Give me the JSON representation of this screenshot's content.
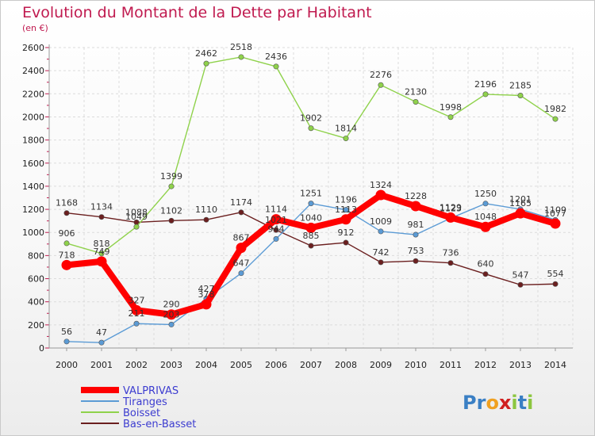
{
  "chart_data": {
    "type": "line",
    "title": "Evolution du Montant de la Dette par Habitant",
    "subtitle": "(en €)",
    "xlabel": "",
    "ylabel": "",
    "ylim": [
      0,
      2600
    ],
    "y_ticks": [
      0,
      200,
      400,
      600,
      800,
      1000,
      1200,
      1400,
      1600,
      1800,
      2000,
      2200,
      2400,
      2600
    ],
    "x": [
      "2000",
      "2001",
      "2002",
      "2003",
      "2004",
      "2005",
      "2006",
      "2007",
      "2008",
      "2009",
      "2010",
      "2011",
      "2012",
      "2013",
      "2014"
    ],
    "grid": true,
    "legend_position": "bottom-left",
    "series": [
      {
        "name": "Bas-en-Basset",
        "color": "#6b1f1f",
        "values": [
          1168,
          1134,
          1088,
          1102,
          1110,
          1174,
          1021,
          885,
          912,
          742,
          753,
          736,
          640,
          547,
          554
        ]
      },
      {
        "name": "Boisset",
        "color": "#8fd24b",
        "values": [
          906,
          818,
          1049,
          1399,
          2462,
          2518,
          2436,
          1902,
          1814,
          2276,
          2130,
          1998,
          2196,
          2185,
          1982
        ]
      },
      {
        "name": "Tiranges",
        "color": "#5b9bd5",
        "values": [
          56,
          47,
          211,
          203,
          427,
          647,
          944,
          1251,
          1196,
          1009,
          981,
          1123,
          1250,
          1201,
          1109
        ]
      },
      {
        "name": "VALPRIVAS",
        "color": "#ff0000",
        "values": [
          718,
          749,
          327,
          290,
          378,
          867,
          1114,
          1040,
          1113,
          1324,
          1228,
          1129,
          1048,
          1165,
          1077
        ]
      }
    ],
    "legend": [
      "VALPRIVAS",
      "Tiranges",
      "Boisset",
      "Bas-en-Basset"
    ]
  },
  "logo": {
    "text": "Proxiti",
    "letter_colors": [
      "#3a7fc4",
      "#3a7fc4",
      "#f0a020",
      "#d02020",
      "#8cc63f",
      "#3a7fc4",
      "#8cc63f"
    ]
  }
}
